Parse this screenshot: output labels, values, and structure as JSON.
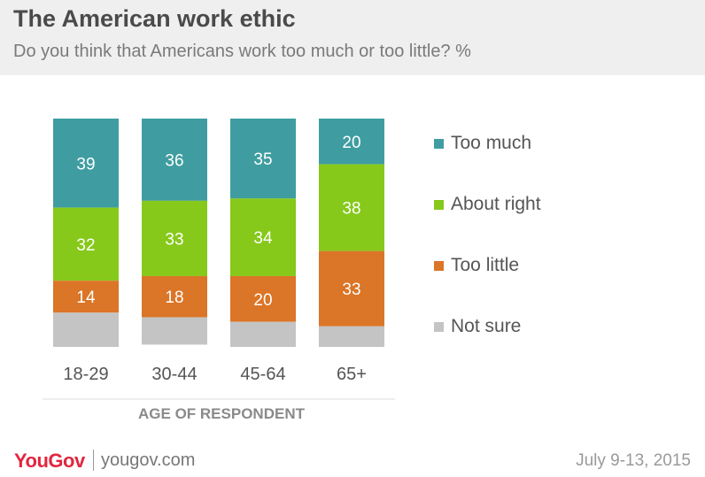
{
  "header": {
    "title": "The American work ethic",
    "subtitle": "Do you think that Americans work too much or too little? %"
  },
  "footer": {
    "logo": "YouGov",
    "site": "yougov.com",
    "date": "July 9-13, 2015"
  },
  "chart_data": {
    "type": "bar",
    "stacked": true,
    "categories": [
      "18-29",
      "30-44",
      "45-64",
      "65+"
    ],
    "xlabel": "AGE OF RESPONDENT",
    "ylabel": "",
    "series": [
      {
        "name": "Too much",
        "values": [
          39,
          36,
          35,
          20
        ],
        "color": "#3f9da1"
      },
      {
        "name": "About right",
        "values": [
          32,
          33,
          34,
          38
        ],
        "color": "#86c91a"
      },
      {
        "name": "Too little",
        "values": [
          14,
          18,
          20,
          33
        ],
        "color": "#db7527"
      },
      {
        "name": "Not sure",
        "values": [
          15,
          12,
          11,
          9
        ],
        "color": "#c4c4c4",
        "show_labels": false
      }
    ],
    "ylim": [
      0,
      100
    ],
    "grid": false,
    "legend_position": "right"
  }
}
